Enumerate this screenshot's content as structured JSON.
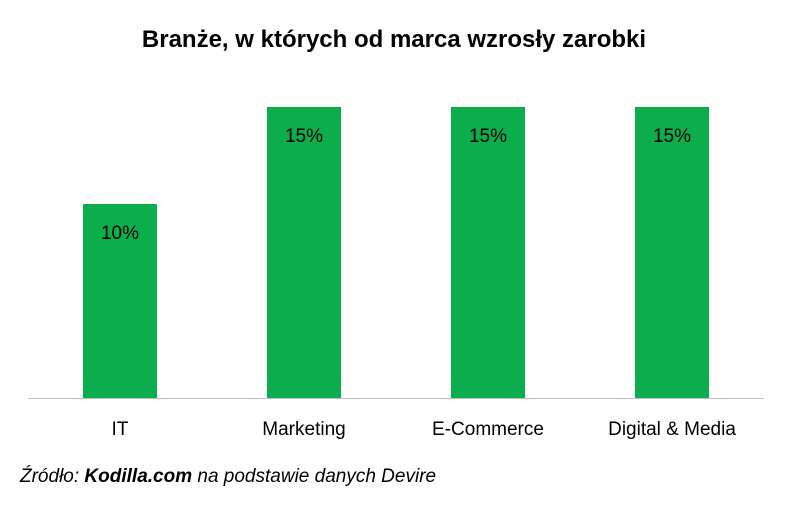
{
  "chart_data": {
    "type": "bar",
    "title": "Branże, w których od marca wzrosły zarobki",
    "categories": [
      "IT",
      "Marketing",
      "E-Commerce",
      "Digital & Media"
    ],
    "values": [
      10,
      15,
      15,
      15
    ],
    "value_labels": [
      "10%",
      "15%",
      "15%",
      "15%"
    ],
    "unit": "%",
    "ylim": [
      0,
      20
    ],
    "grid": false,
    "legend": "none",
    "bar_color": "#0cad4c",
    "axis_color": "#bfbfbf"
  },
  "source": {
    "prefix": "Źródło:",
    "site": "Kodilla.com",
    "suffix": "na podstawie danych Devire"
  }
}
